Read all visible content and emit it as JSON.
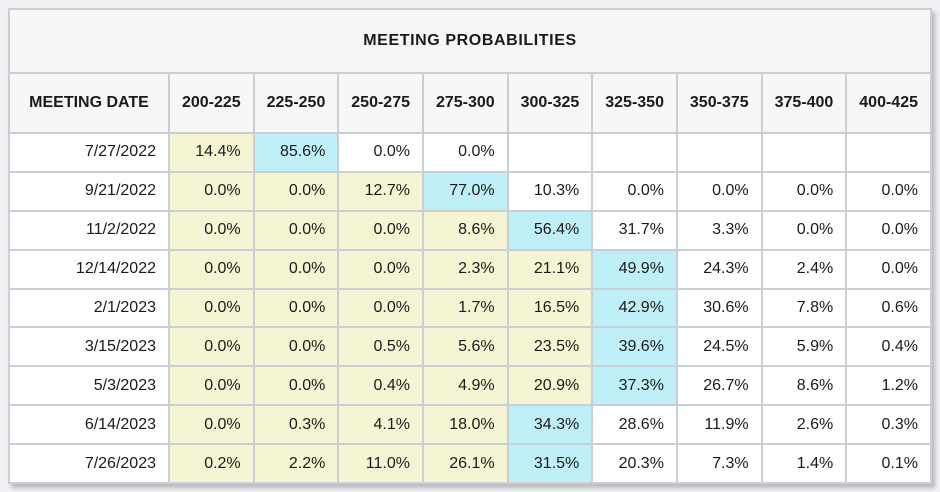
{
  "title": "MEETING PROBABILITIES",
  "colors": {
    "page_bg": "#f1f1f3",
    "table_bg": "#f7f7f7",
    "outer_border": "#bfc0c8",
    "grid": "#ccced6",
    "text": "#1a1a1a",
    "cell_white": "#ffffff",
    "cell_yellow": "#f5f5d4",
    "cell_cyan": "#bff0f7"
  },
  "chart_data": {
    "type": "table",
    "title": "MEETING PROBABILITIES",
    "columns": [
      "MEETING DATE",
      "200-225",
      "225-250",
      "250-275",
      "275-300",
      "300-325",
      "325-350",
      "350-375",
      "375-400",
      "400-425"
    ],
    "highlight_legend": {
      "yellow": "cells below the modal rate range",
      "cyan": "modal (highest probability) rate range",
      "white": "cells above the modal rate range or zero/empty"
    },
    "rows": [
      {
        "date": "7/27/2022",
        "cells": [
          "14.4%",
          "85.6%",
          "0.0%",
          "0.0%",
          "",
          "",
          "",
          "",
          ""
        ],
        "highlights": [
          "yellow",
          "cyan",
          "white",
          "white",
          "white",
          "white",
          "white",
          "white",
          "white"
        ]
      },
      {
        "date": "9/21/2022",
        "cells": [
          "0.0%",
          "0.0%",
          "12.7%",
          "77.0%",
          "10.3%",
          "0.0%",
          "0.0%",
          "0.0%",
          "0.0%"
        ],
        "highlights": [
          "yellow",
          "yellow",
          "yellow",
          "cyan",
          "white",
          "white",
          "white",
          "white",
          "white"
        ]
      },
      {
        "date": "11/2/2022",
        "cells": [
          "0.0%",
          "0.0%",
          "0.0%",
          "8.6%",
          "56.4%",
          "31.7%",
          "3.3%",
          "0.0%",
          "0.0%"
        ],
        "highlights": [
          "yellow",
          "yellow",
          "yellow",
          "yellow",
          "cyan",
          "white",
          "white",
          "white",
          "white"
        ]
      },
      {
        "date": "12/14/2022",
        "cells": [
          "0.0%",
          "0.0%",
          "0.0%",
          "2.3%",
          "21.1%",
          "49.9%",
          "24.3%",
          "2.4%",
          "0.0%"
        ],
        "highlights": [
          "yellow",
          "yellow",
          "yellow",
          "yellow",
          "yellow",
          "cyan",
          "white",
          "white",
          "white"
        ]
      },
      {
        "date": "2/1/2023",
        "cells": [
          "0.0%",
          "0.0%",
          "0.0%",
          "1.7%",
          "16.5%",
          "42.9%",
          "30.6%",
          "7.8%",
          "0.6%"
        ],
        "highlights": [
          "yellow",
          "yellow",
          "yellow",
          "yellow",
          "yellow",
          "cyan",
          "white",
          "white",
          "white"
        ]
      },
      {
        "date": "3/15/2023",
        "cells": [
          "0.0%",
          "0.0%",
          "0.5%",
          "5.6%",
          "23.5%",
          "39.6%",
          "24.5%",
          "5.9%",
          "0.4%"
        ],
        "highlights": [
          "yellow",
          "yellow",
          "yellow",
          "yellow",
          "yellow",
          "cyan",
          "white",
          "white",
          "white"
        ]
      },
      {
        "date": "5/3/2023",
        "cells": [
          "0.0%",
          "0.0%",
          "0.4%",
          "4.9%",
          "20.9%",
          "37.3%",
          "26.7%",
          "8.6%",
          "1.2%"
        ],
        "highlights": [
          "yellow",
          "yellow",
          "yellow",
          "yellow",
          "yellow",
          "cyan",
          "white",
          "white",
          "white"
        ]
      },
      {
        "date": "6/14/2023",
        "cells": [
          "0.0%",
          "0.3%",
          "4.1%",
          "18.0%",
          "34.3%",
          "28.6%",
          "11.9%",
          "2.6%",
          "0.3%"
        ],
        "highlights": [
          "yellow",
          "yellow",
          "yellow",
          "yellow",
          "cyan",
          "white",
          "white",
          "white",
          "white"
        ]
      },
      {
        "date": "7/26/2023",
        "cells": [
          "0.2%",
          "2.2%",
          "11.0%",
          "26.1%",
          "31.5%",
          "20.3%",
          "7.3%",
          "1.4%",
          "0.1%"
        ],
        "highlights": [
          "yellow",
          "yellow",
          "yellow",
          "yellow",
          "cyan",
          "white",
          "white",
          "white",
          "white"
        ]
      }
    ]
  }
}
